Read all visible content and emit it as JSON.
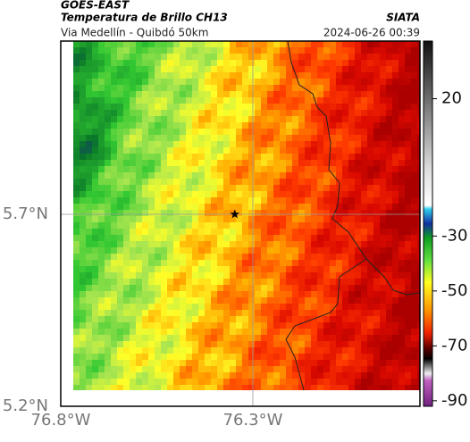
{
  "header": {
    "title": "GOES-EAST",
    "subtitle": "Temperatura de Brillo CH13",
    "location": "Via Medellín - Quibdó 50km",
    "source": "SIATA",
    "datetime": "2024-06-26 00:39"
  },
  "map": {
    "xlim": [
      -76.8,
      -75.865
    ],
    "ylim": [
      5.2,
      6.151
    ],
    "xticks": [
      {
        "value": -76.8,
        "label": "76.8°W"
      },
      {
        "value": -76.3,
        "label": "76.3°W"
      }
    ],
    "yticks": [
      {
        "value": 5.7,
        "label": "5.7°N"
      },
      {
        "value": 5.2,
        "label": "5.2°N"
      }
    ],
    "marker": {
      "lon": -76.347,
      "lat": 5.7
    },
    "grid": true
  },
  "colorbar": {
    "lim": [
      41,
      -92
    ],
    "ticks": [
      20,
      -30,
      -50,
      -70,
      -90
    ]
  }
}
